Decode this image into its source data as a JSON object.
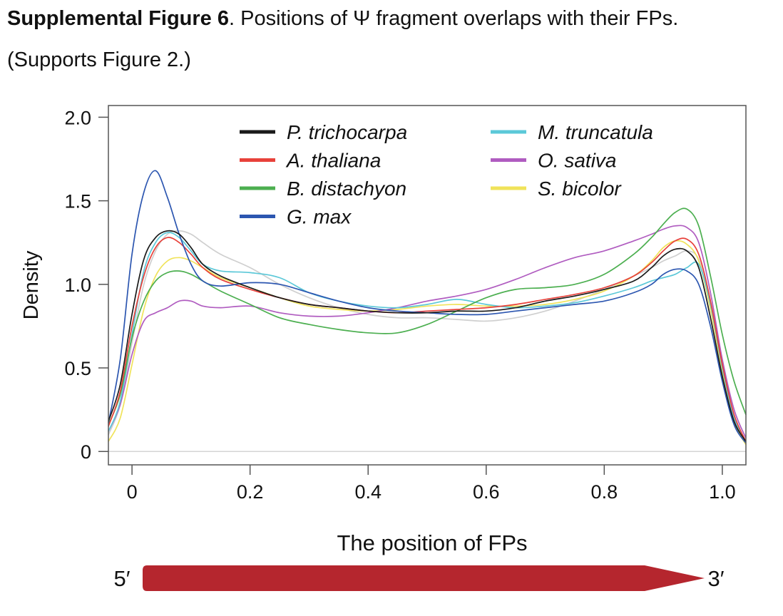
{
  "caption": {
    "bold": "Supplemental Figure 6",
    "rest": ". Positions of Ψ fragment overlaps with their FPs.",
    "line2": "(Supports Figure 2.)"
  },
  "chart_data": {
    "type": "line",
    "xlabel": "The position of FPs",
    "ylabel": "Density",
    "xlim": [
      -0.04,
      1.04
    ],
    "ylim": [
      0,
      2.0
    ],
    "xticks": [
      0,
      0.2,
      0.4,
      0.6,
      0.8,
      1.0
    ],
    "xtick_labels": [
      "0",
      "0.2",
      "0.4",
      "0.6",
      "0.8",
      "1.0"
    ],
    "yticks": [
      0,
      0.5,
      1.0,
      1.5,
      2.0
    ],
    "ytick_labels": [
      "0",
      "0.5",
      "1.0",
      "1.5",
      "2.0"
    ],
    "baseline_y": 0,
    "legend_position": "top",
    "legend": {
      "left": [
        "P. trichocarpa",
        "A. thaliana",
        "B. distachyon",
        "G. max"
      ],
      "right": [
        "M. truncatula",
        "O. sativa",
        "S. bicolor"
      ]
    },
    "x": [
      -0.04,
      -0.02,
      0,
      0.02,
      0.04,
      0.06,
      0.08,
      0.1,
      0.12,
      0.15,
      0.2,
      0.25,
      0.3,
      0.35,
      0.4,
      0.45,
      0.5,
      0.55,
      0.6,
      0.65,
      0.7,
      0.75,
      0.8,
      0.85,
      0.88,
      0.9,
      0.92,
      0.94,
      0.96,
      0.98,
      1.0,
      1.02,
      1.04
    ],
    "series": [
      {
        "name": "P. trichocarpa",
        "color": "#1a1a1a",
        "values": [
          0.18,
          0.4,
          0.82,
          1.15,
          1.28,
          1.32,
          1.3,
          1.22,
          1.12,
          1.05,
          0.98,
          0.92,
          0.88,
          0.86,
          0.84,
          0.83,
          0.83,
          0.84,
          0.84,
          0.86,
          0.9,
          0.93,
          0.97,
          1.02,
          1.1,
          1.17,
          1.21,
          1.2,
          1.1,
          0.8,
          0.45,
          0.18,
          0.06
        ]
      },
      {
        "name": "A. thaliana",
        "color": "#e8413a",
        "values": [
          0.15,
          0.36,
          0.75,
          1.05,
          1.22,
          1.28,
          1.25,
          1.18,
          1.1,
          1.03,
          0.97,
          0.92,
          0.88,
          0.86,
          0.84,
          0.83,
          0.84,
          0.85,
          0.86,
          0.88,
          0.91,
          0.94,
          0.98,
          1.05,
          1.13,
          1.2,
          1.26,
          1.27,
          1.18,
          0.9,
          0.52,
          0.22,
          0.06
        ]
      },
      {
        "name": "B. distachyon",
        "color": "#4caf50",
        "values": [
          0.16,
          0.34,
          0.68,
          0.9,
          1.02,
          1.07,
          1.08,
          1.06,
          1.02,
          0.96,
          0.88,
          0.8,
          0.76,
          0.73,
          0.71,
          0.71,
          0.76,
          0.84,
          0.92,
          0.97,
          0.98,
          1.0,
          1.06,
          1.18,
          1.28,
          1.36,
          1.43,
          1.45,
          1.35,
          1.05,
          0.7,
          0.42,
          0.22
        ]
      },
      {
        "name": "G. max",
        "color": "#2c56b0",
        "values": [
          0.17,
          0.55,
          1.18,
          1.55,
          1.68,
          1.52,
          1.3,
          1.12,
          1.02,
          0.99,
          1.01,
          1.0,
          0.95,
          0.9,
          0.86,
          0.84,
          0.83,
          0.82,
          0.82,
          0.84,
          0.86,
          0.88,
          0.9,
          0.95,
          1.0,
          1.06,
          1.09,
          1.08,
          1.0,
          0.75,
          0.42,
          0.16,
          0.05
        ]
      },
      {
        "name": "M. truncatula",
        "color": "#5bc8d8",
        "values": [
          0.12,
          0.3,
          0.7,
          1.08,
          1.25,
          1.31,
          1.28,
          1.2,
          1.12,
          1.08,
          1.07,
          1.04,
          0.95,
          0.9,
          0.87,
          0.86,
          0.88,
          0.91,
          0.88,
          0.86,
          0.87,
          0.89,
          0.93,
          0.98,
          1.02,
          1.04,
          1.06,
          1.1,
          1.12,
          0.88,
          0.5,
          0.2,
          0.06
        ]
      },
      {
        "name": "O. sativa",
        "color": "#b05cc0",
        "values": [
          0.12,
          0.28,
          0.58,
          0.78,
          0.83,
          0.86,
          0.9,
          0.9,
          0.87,
          0.86,
          0.87,
          0.83,
          0.81,
          0.81,
          0.83,
          0.86,
          0.9,
          0.93,
          0.97,
          1.03,
          1.1,
          1.16,
          1.2,
          1.26,
          1.3,
          1.33,
          1.35,
          1.34,
          1.25,
          0.95,
          0.55,
          0.25,
          0.08
        ]
      },
      {
        "name": "S. bicolor",
        "color": "#f0e35a",
        "values": [
          0.06,
          0.2,
          0.52,
          0.85,
          1.05,
          1.14,
          1.16,
          1.14,
          1.1,
          1.04,
          0.98,
          0.92,
          0.87,
          0.85,
          0.84,
          0.85,
          0.87,
          0.88,
          0.87,
          0.87,
          0.88,
          0.91,
          0.96,
          1.05,
          1.14,
          1.22,
          1.26,
          1.24,
          1.14,
          0.85,
          0.48,
          0.18,
          0.04
        ]
      },
      {
        "name": "",
        "color": "#cfcfcf",
        "values": [
          0.1,
          0.28,
          0.65,
          1.0,
          1.2,
          1.3,
          1.32,
          1.3,
          1.25,
          1.18,
          1.1,
          1.0,
          0.92,
          0.86,
          0.82,
          0.8,
          0.8,
          0.79,
          0.78,
          0.8,
          0.84,
          0.9,
          0.97,
          1.05,
          1.1,
          1.14,
          1.17,
          1.2,
          1.15,
          0.9,
          0.55,
          0.25,
          0.08
        ]
      }
    ],
    "arrow": {
      "left_label": "5′",
      "right_label": "3′",
      "color": "#b5262e"
    }
  }
}
